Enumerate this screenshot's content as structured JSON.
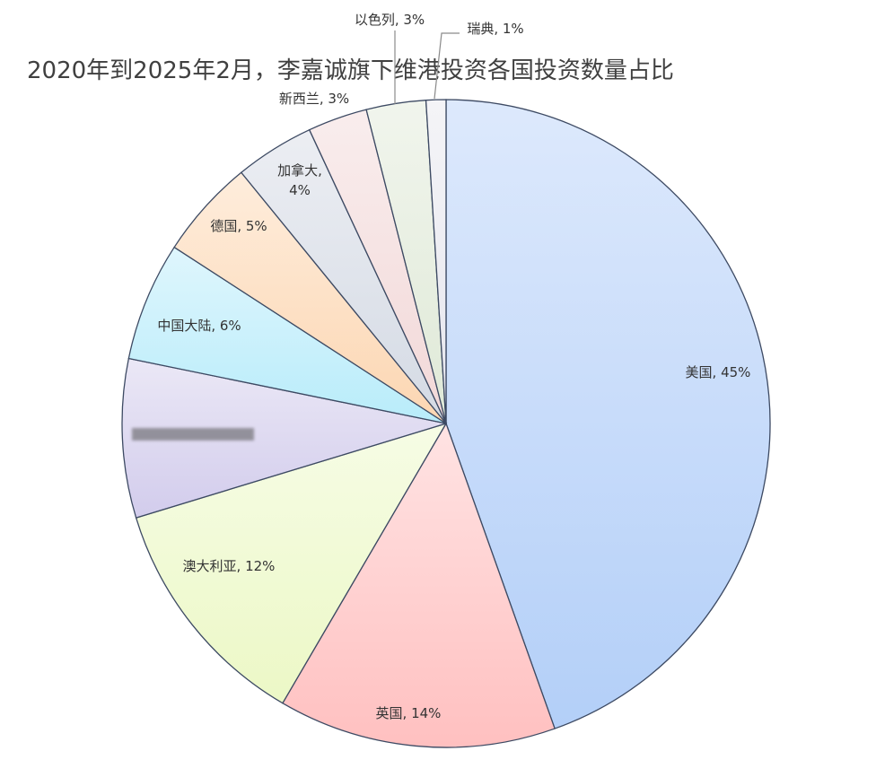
{
  "chart_data": {
    "type": "pie",
    "title": "2020年到2025年2月，李嘉诚旗下维港投资各国投资数量占比",
    "slices": [
      {
        "label": "美国, 45%",
        "value": 45,
        "color": "#b3cff8"
      },
      {
        "label": "英国, 14%",
        "value": 14,
        "color": "#ffc0c0"
      },
      {
        "label": "澳大利亚, 12%",
        "value": 12,
        "color": "#ecf8c6"
      },
      {
        "label": "",
        "value": 8,
        "color": "#d2ccec"
      },
      {
        "label": "中国大陆, 6%",
        "value": 6,
        "color": "#b8ecfa"
      },
      {
        "label": "德国, 5%",
        "value": 5,
        "color": "#fcd6b2"
      },
      {
        "label": "加拿大, 4%",
        "value": 4,
        "color": "#d4dae4"
      },
      {
        "label": "新西兰, 3%",
        "value": 3,
        "color": "#f2d8d8"
      },
      {
        "label": "以色列, 3%",
        "value": 3,
        "color": "#dfe9d7"
      },
      {
        "label": "瑞典, 1%",
        "value": 1,
        "color": "#e6e6ee"
      }
    ]
  }
}
